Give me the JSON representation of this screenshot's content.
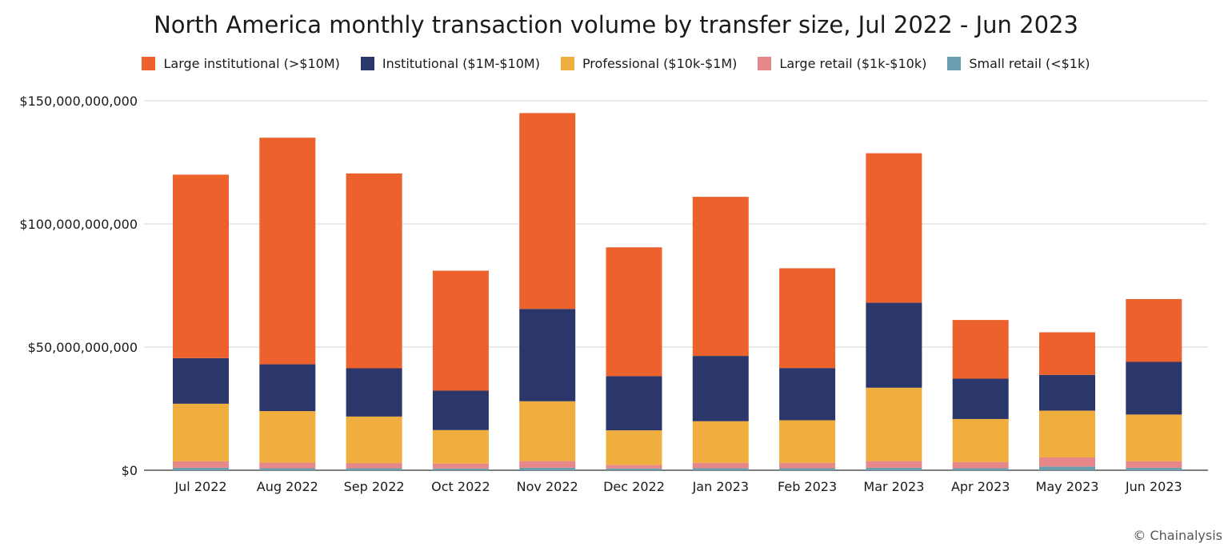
{
  "chart_data": {
    "type": "bar",
    "stacked": true,
    "title": "North America monthly transaction volume by transfer size, Jul 2022 - Jun 2023",
    "xlabel": "",
    "ylabel": "",
    "ylim": [
      0,
      150000000000
    ],
    "yticks": [
      {
        "value": 0,
        "label": "$0"
      },
      {
        "value": 50000000000,
        "label": "$50,000,000,000"
      },
      {
        "value": 100000000000,
        "label": "$100,000,000,000"
      },
      {
        "value": 150000000000,
        "label": "$150,000,000,000"
      }
    ],
    "grid": true,
    "legend_position": "top-center",
    "categories": [
      "Jul 2022",
      "Aug 2022",
      "Sep 2022",
      "Oct 2022",
      "Nov 2022",
      "Dec 2022",
      "Jan 2023",
      "Feb 2023",
      "Mar 2023",
      "Apr 2023",
      "May 2023",
      "Jun 2023"
    ],
    "series": [
      {
        "name": "Small retail (<$1k)",
        "color": "#6a9fb0",
        "values": [
          1000000000,
          800000000,
          800000000,
          700000000,
          1000000000,
          700000000,
          800000000,
          800000000,
          1000000000,
          800000000,
          1500000000,
          1000000000
        ]
      },
      {
        "name": "Large retail ($1k-$10k)",
        "color": "#e8878a",
        "values": [
          2600000000,
          2300000000,
          2100000000,
          2000000000,
          2700000000,
          1500000000,
          2200000000,
          2200000000,
          2700000000,
          2500000000,
          3700000000,
          2600000000
        ]
      },
      {
        "name": "Professional ($10k-$1M)",
        "color": "#f0ae3e",
        "values": [
          23400000000,
          20900000000,
          18900000000,
          13600000000,
          24300000000,
          14000000000,
          16900000000,
          17300000000,
          29800000000,
          17500000000,
          19000000000,
          19000000000
        ]
      },
      {
        "name": "Institutional ($1M-$10M)",
        "color": "#2b376b",
        "values": [
          18500000000,
          19000000000,
          19600000000,
          16000000000,
          37500000000,
          22000000000,
          26500000000,
          21200000000,
          34500000000,
          16400000000,
          14500000000,
          21400000000
        ]
      },
      {
        "name": "Large institutional (>$10M)",
        "color": "#ec612c",
        "values": [
          74500000000,
          92000000000,
          79100000000,
          48700000000,
          79500000000,
          52300000000,
          64600000000,
          40500000000,
          60700000000,
          23800000000,
          17300000000,
          25500000000
        ]
      }
    ]
  },
  "legend_order": [
    4,
    3,
    2,
    1,
    0
  ],
  "credit": "© Chainalysis"
}
